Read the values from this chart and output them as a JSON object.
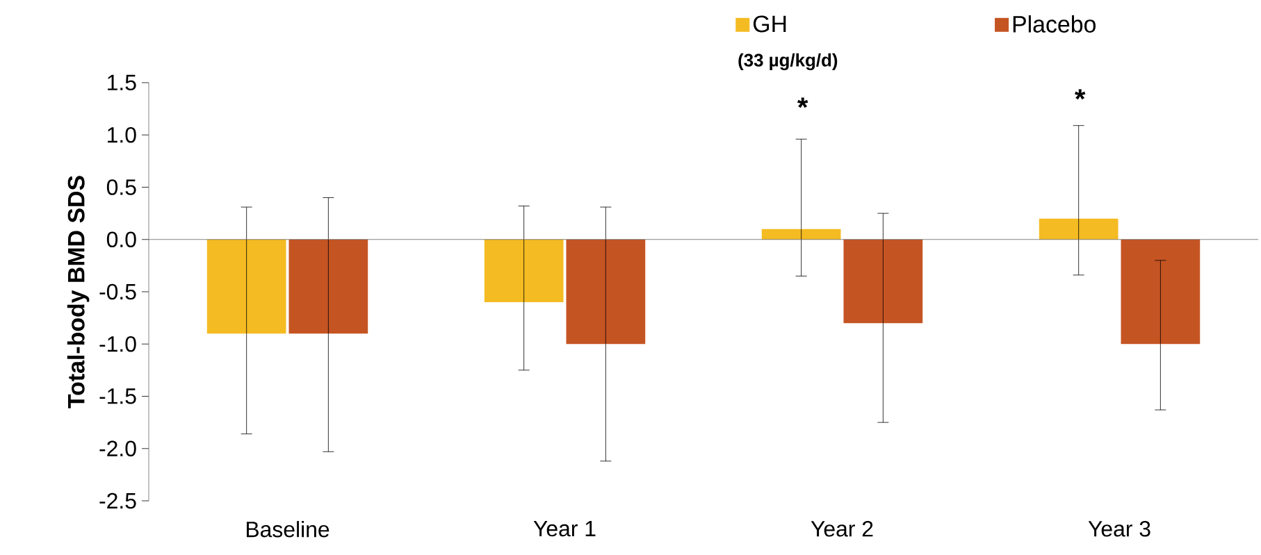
{
  "chart_data": {
    "type": "bar",
    "ylabel": "Total-body BMD SDS",
    "categories": [
      "Baseline",
      "Year 1",
      "Year 2",
      "Year 3"
    ],
    "series": [
      {
        "name": "GH",
        "color": "#f4bb22",
        "values": [
          -0.9,
          -0.6,
          0.1,
          0.2
        ],
        "errors": [
          [
            -1.86,
            0.31
          ],
          [
            -1.25,
            0.32
          ],
          [
            -0.35,
            0.96
          ],
          [
            -0.34,
            1.09
          ]
        ]
      },
      {
        "name": "Placebo",
        "color": "#c55423",
        "values": [
          -0.9,
          -1.0,
          -0.8,
          -1.0
        ],
        "errors": [
          [
            -2.03,
            0.4
          ],
          [
            -2.12,
            0.31
          ],
          [
            -1.75,
            0.25
          ],
          [
            -1.63,
            -0.2
          ]
        ]
      }
    ],
    "ylim": [
      -2.5,
      1.5
    ],
    "yticks": [
      -2.5,
      {
        "value": -2,
        "label": "-2.0"
      },
      -1.5,
      {
        "value": -1,
        "label": "-1.0"
      },
      -0.5,
      {
        "value": 0,
        "label": "0.0"
      },
      0.5,
      {
        "value": 1,
        "label": "1.0"
      },
      1.5
    ],
    "legend": "top",
    "annotations": [
      "(33 µg/kg/d)",
      "*",
      "*"
    ]
  }
}
